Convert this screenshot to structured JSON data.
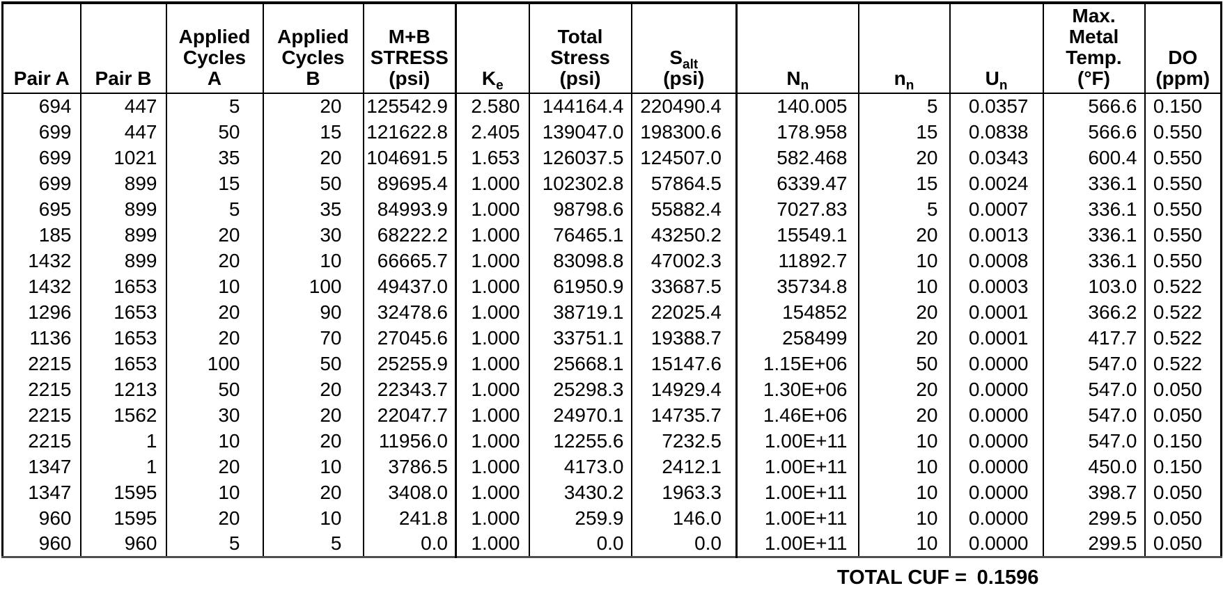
{
  "columns": [
    {
      "id": "pair-a",
      "label": "Pair A"
    },
    {
      "id": "pair-b",
      "label": "Pair B"
    },
    {
      "id": "cycles-a",
      "label": "Applied\nCycles\nA"
    },
    {
      "id": "cycles-b",
      "label": "Applied\nCycles\nB"
    },
    {
      "id": "mb-stress",
      "label": "M+B\nSTRESS\n(psi)"
    },
    {
      "id": "ke",
      "sym": "K",
      "sub": "e"
    },
    {
      "id": "total-stress",
      "label": "Total\nStress\n(psi)"
    },
    {
      "id": "s-alt",
      "sym": "S",
      "sub": "alt",
      "unit": "(psi)"
    },
    {
      "id": "nn-allowable",
      "sym": "N",
      "sub": "n"
    },
    {
      "id": "nn-applied",
      "sym": "n",
      "sub": "n"
    },
    {
      "id": "un-usage",
      "sym": "U",
      "sub": "n"
    },
    {
      "id": "max-temp",
      "label": "Max.\nMetal\nTemp.\n(°F)"
    },
    {
      "id": "do",
      "label": "DO\n(ppm)"
    }
  ],
  "rows": [
    [
      "694",
      "447",
      "5",
      "20",
      "125542.9",
      "2.580",
      "144164.4",
      "220490.4",
      "140.005",
      "5",
      "0.0357",
      "566.6",
      "0.150"
    ],
    [
      "699",
      "447",
      "50",
      "15",
      "121622.8",
      "2.405",
      "139047.0",
      "198300.6",
      "178.958",
      "15",
      "0.0838",
      "566.6",
      "0.550"
    ],
    [
      "699",
      "1021",
      "35",
      "20",
      "104691.5",
      "1.653",
      "126037.5",
      "124507.0",
      "582.468",
      "20",
      "0.0343",
      "600.4",
      "0.550"
    ],
    [
      "699",
      "899",
      "15",
      "50",
      "89695.4",
      "1.000",
      "102302.8",
      "57864.5",
      "6339.47",
      "15",
      "0.0024",
      "336.1",
      "0.550"
    ],
    [
      "695",
      "899",
      "5",
      "35",
      "84993.9",
      "1.000",
      "98798.6",
      "55882.4",
      "7027.83",
      "5",
      "0.0007",
      "336.1",
      "0.550"
    ],
    [
      "185",
      "899",
      "20",
      "30",
      "68222.2",
      "1.000",
      "76465.1",
      "43250.2",
      "15549.1",
      "20",
      "0.0013",
      "336.1",
      "0.550"
    ],
    [
      "1432",
      "899",
      "20",
      "10",
      "66665.7",
      "1.000",
      "83098.8",
      "47002.3",
      "11892.7",
      "10",
      "0.0008",
      "336.1",
      "0.550"
    ],
    [
      "1432",
      "1653",
      "10",
      "100",
      "49437.0",
      "1.000",
      "61950.9",
      "33687.5",
      "35734.8",
      "10",
      "0.0003",
      "103.0",
      "0.522"
    ],
    [
      "1296",
      "1653",
      "20",
      "90",
      "32478.6",
      "1.000",
      "38719.1",
      "22025.4",
      "154852",
      "20",
      "0.0001",
      "366.2",
      "0.522"
    ],
    [
      "1136",
      "1653",
      "20",
      "70",
      "27045.6",
      "1.000",
      "33751.1",
      "19388.7",
      "258499",
      "20",
      "0.0001",
      "417.7",
      "0.522"
    ],
    [
      "2215",
      "1653",
      "100",
      "50",
      "25255.9",
      "1.000",
      "25668.1",
      "15147.6",
      "1.15E+06",
      "50",
      "0.0000",
      "547.0",
      "0.522"
    ],
    [
      "2215",
      "1213",
      "50",
      "20",
      "22343.7",
      "1.000",
      "25298.3",
      "14929.4",
      "1.30E+06",
      "20",
      "0.0000",
      "547.0",
      "0.050"
    ],
    [
      "2215",
      "1562",
      "30",
      "20",
      "22047.7",
      "1.000",
      "24970.1",
      "14735.7",
      "1.46E+06",
      "20",
      "0.0000",
      "547.0",
      "0.050"
    ],
    [
      "2215",
      "1",
      "10",
      "20",
      "11956.0",
      "1.000",
      "12255.6",
      "7232.5",
      "1.00E+11",
      "10",
      "0.0000",
      "547.0",
      "0.150"
    ],
    [
      "1347",
      "1",
      "20",
      "10",
      "3786.5",
      "1.000",
      "4173.0",
      "2412.1",
      "1.00E+11",
      "10",
      "0.0000",
      "450.0",
      "0.150"
    ],
    [
      "1347",
      "1595",
      "10",
      "20",
      "3408.0",
      "1.000",
      "3430.2",
      "1963.3",
      "1.00E+11",
      "10",
      "0.0000",
      "398.7",
      "0.050"
    ],
    [
      "960",
      "1595",
      "20",
      "10",
      "241.8",
      "1.000",
      "259.9",
      "146.0",
      "1.00E+11",
      "10",
      "0.0000",
      "299.5",
      "0.050"
    ],
    [
      "960",
      "960",
      "5",
      "5",
      "0.0",
      "1.000",
      "0.0",
      "0.0",
      "1.00E+11",
      "10",
      "0.0000",
      "299.5",
      "0.050"
    ]
  ],
  "footer": {
    "label": "TOTAL CUF =",
    "value": "0.1596"
  }
}
